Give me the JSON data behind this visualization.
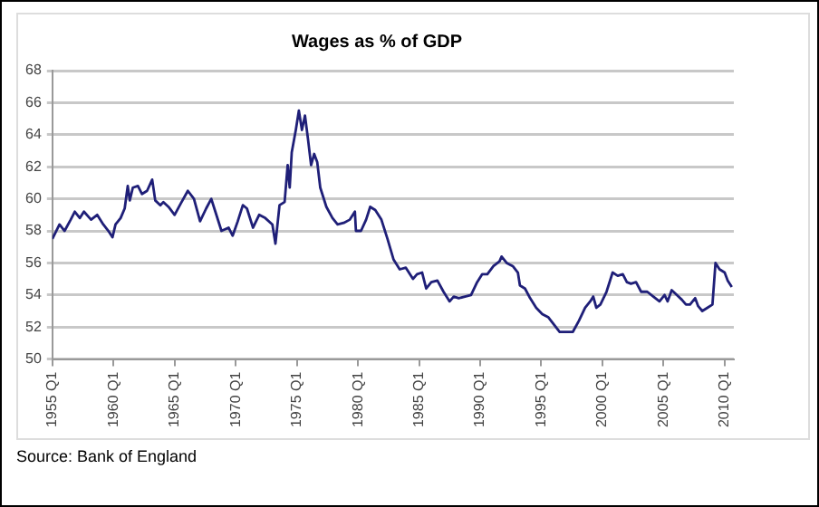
{
  "chart_data": {
    "type": "line",
    "title": "Wages as % of GDP",
    "annotations": [
      "Source: Bank of England"
    ],
    "series": [
      {
        "color": "#1f1f78",
        "x": [
          "1955-01",
          "1955-08",
          "1956-01",
          "1956-07",
          "1956-11",
          "1957-04",
          "1957-08",
          "1958-03",
          "1958-09",
          "1959-03",
          "1959-08",
          "1959-12",
          "1960-03",
          "1960-08",
          "1960-12",
          "1961-03",
          "1961-05",
          "1961-08",
          "1962-01",
          "1962-05",
          "1962-10",
          "1963-03",
          "1963-06",
          "1963-11",
          "1964-02",
          "1964-07",
          "1965-01",
          "1965-07",
          "1966-02",
          "1966-08",
          "1967-02",
          "1967-08",
          "1968-01",
          "1968-05",
          "1968-11",
          "1969-06",
          "1969-10",
          "1970-03",
          "1970-08",
          "1970-12",
          "1971-06",
          "1971-12",
          "1972-06",
          "1973-01",
          "1973-04",
          "1973-08",
          "1974-01",
          "1974-04",
          "1974-06",
          "1974-08",
          "1974-12",
          "1975-03",
          "1975-06",
          "1975-09",
          "1975-12",
          "1976-03",
          "1976-06",
          "1976-09",
          "1976-12",
          "1977-06",
          "1977-12",
          "1978-05",
          "1978-11",
          "1979-05",
          "1979-10",
          "1979-11",
          "1980-04",
          "1980-09",
          "1981-01",
          "1981-06",
          "1981-12",
          "1982-06",
          "1982-12",
          "1983-06",
          "1983-12",
          "1984-07",
          "1984-11",
          "1985-04",
          "1985-08",
          "1986-01",
          "1986-07",
          "1987-01",
          "1987-07",
          "1987-11",
          "1988-04",
          "1988-10",
          "1989-04",
          "1989-10",
          "1990-03",
          "1990-08",
          "1991-02",
          "1991-08",
          "1991-10",
          "1992-03",
          "1992-09",
          "1993-02",
          "1993-04",
          "1993-09",
          "1994-02",
          "1994-08",
          "1995-02",
          "1995-08",
          "1996-02",
          "1996-07",
          "1997-02",
          "1997-08",
          "1998-02",
          "1998-08",
          "1999-01",
          "1999-04",
          "1999-07",
          "1999-11",
          "2000-05",
          "2000-11",
          "2001-04",
          "2001-09",
          "2002-01",
          "2002-05",
          "2002-10",
          "2003-03",
          "2003-09",
          "2004-03",
          "2004-09",
          "2005-02",
          "2005-05",
          "2005-09",
          "2006-02",
          "2006-07",
          "2006-11",
          "2007-03",
          "2007-08",
          "2007-11",
          "2008-03",
          "2008-08",
          "2009-01",
          "2009-04",
          "2009-08",
          "2010-01",
          "2010-04",
          "2010-08"
        ],
        "values": [
          57.5,
          58.4,
          58,
          58.7,
          59.2,
          58.8,
          59.2,
          58.7,
          59,
          58.4,
          58,
          57.6,
          58.4,
          58.8,
          59.4,
          60.8,
          59.9,
          60.7,
          60.8,
          60.3,
          60.5,
          61.2,
          59.9,
          59.6,
          59.8,
          59.5,
          59,
          59.7,
          60.5,
          60,
          58.6,
          59.4,
          60,
          59.2,
          58,
          58.2,
          57.7,
          58.6,
          59.6,
          59.4,
          58.2,
          59,
          58.8,
          58.4,
          57.2,
          59.6,
          59.8,
          62.1,
          60.7,
          62.9,
          64.3,
          65.5,
          64.3,
          65.2,
          63.7,
          62.1,
          62.8,
          62.3,
          60.7,
          59.5,
          58.8,
          58.4,
          58.5,
          58.7,
          59.2,
          58,
          58,
          58.7,
          59.5,
          59.3,
          58.7,
          57.5,
          56.2,
          55.6,
          55.7,
          55,
          55.3,
          55.4,
          54.4,
          54.8,
          54.9,
          54.2,
          53.6,
          53.9,
          53.8,
          53.9,
          54,
          54.8,
          55.3,
          55.3,
          55.8,
          56.1,
          56.4,
          56,
          55.8,
          55.4,
          54.6,
          54.4,
          53.8,
          53.2,
          52.8,
          52.6,
          52.1,
          51.7,
          51.7,
          51.7,
          52.4,
          53.2,
          53.6,
          53.9,
          53.2,
          53.4,
          54.2,
          55.4,
          55.2,
          55.3,
          54.8,
          54.7,
          54.8,
          54.2,
          54.2,
          53.9,
          53.6,
          54,
          53.6,
          54.3,
          54,
          53.7,
          53.4,
          53.4,
          53.8,
          53.3,
          53,
          53.2,
          53.4,
          56,
          55.6,
          55.4,
          54.9,
          54.5
        ]
      }
    ],
    "xlim": [
      "1955-01",
      "2010-10"
    ],
    "xticks": [
      {
        "value": "1955-01",
        "label": "1955 Q1"
      },
      {
        "value": "1960-01",
        "label": "1960 Q1"
      },
      {
        "value": "1965-01",
        "label": "1965 Q1"
      },
      {
        "value": "1970-01",
        "label": "1970 Q1"
      },
      {
        "value": "1975-01",
        "label": "1975 Q1"
      },
      {
        "value": "1980-01",
        "label": "1980 Q1"
      },
      {
        "value": "1985-01",
        "label": "1985 Q1"
      },
      {
        "value": "1990-01",
        "label": "1990 Q1"
      },
      {
        "value": "1995-01",
        "label": "1995 Q1"
      },
      {
        "value": "2000-01",
        "label": "2000 Q1"
      },
      {
        "value": "2005-01",
        "label": "2005 Q1"
      },
      {
        "value": "2010-01",
        "label": "2010 Q1"
      }
    ],
    "ylim": [
      50,
      68
    ],
    "yticks": [
      50,
      52,
      54,
      56,
      58,
      60,
      62,
      64,
      66,
      68
    ],
    "grid": "y",
    "legend": false,
    "marker": "none",
    "line_style": "solid"
  }
}
